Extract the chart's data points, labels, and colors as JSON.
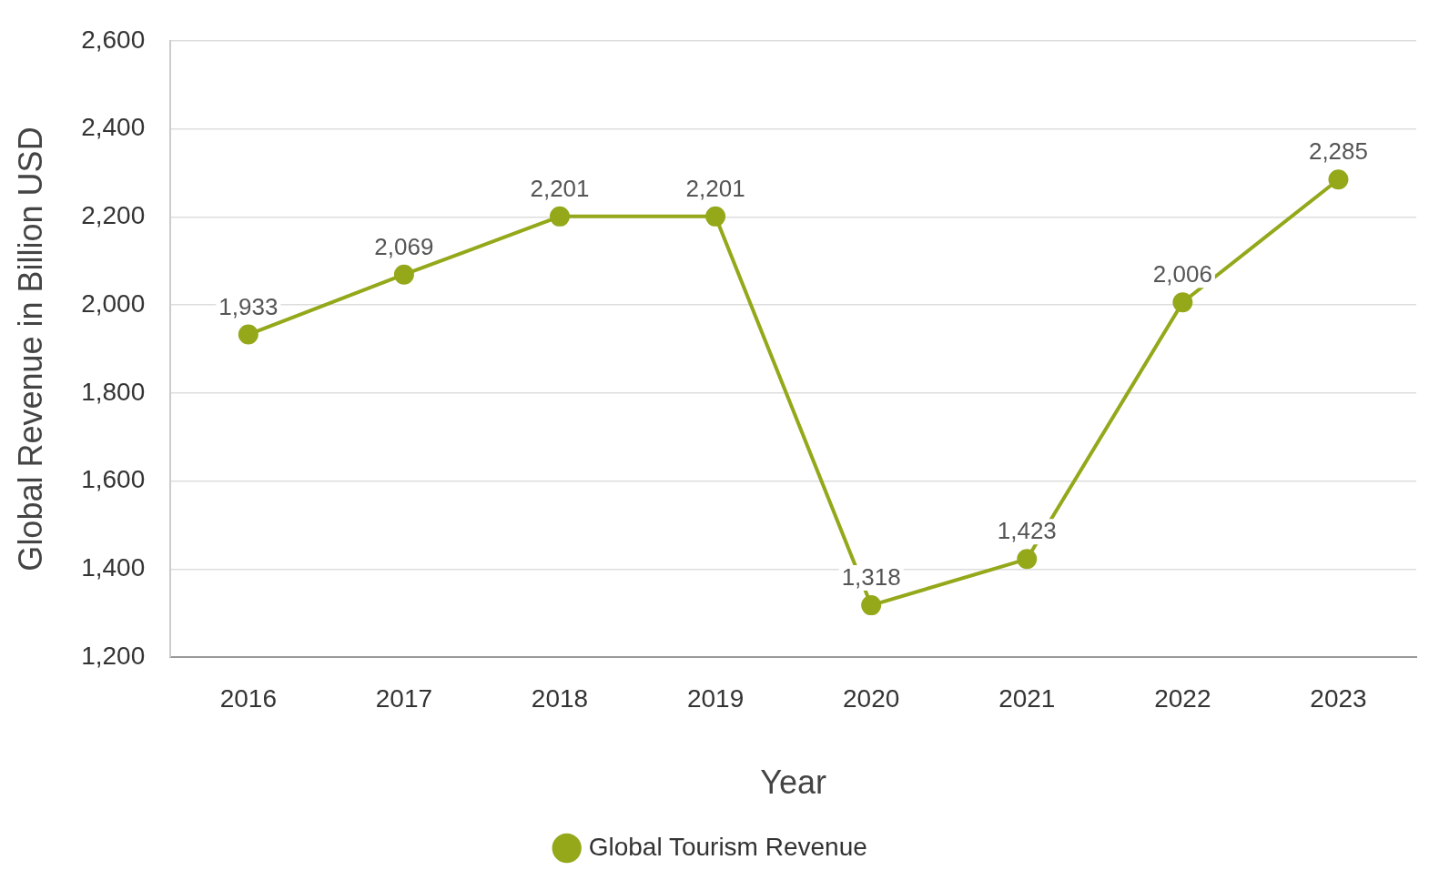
{
  "chart_data": {
    "type": "line",
    "xlabel": "Year",
    "ylabel": "Global Revenue in Billion USD",
    "categories": [
      "2016",
      "2017",
      "2018",
      "2019",
      "2020",
      "2021",
      "2022",
      "2023"
    ],
    "series": [
      {
        "name": "Global Tourism Revenue",
        "color": "#94a81a",
        "values": [
          1933,
          2069,
          2201,
          2201,
          1318,
          1423,
          2006,
          2285
        ],
        "value_labels": [
          "1,933",
          "2,069",
          "2,201",
          "2,201",
          "1,318",
          "1,423",
          "2,006",
          "2,285"
        ]
      }
    ],
    "ylim": [
      1200,
      2600
    ],
    "yticks": [
      {
        "value": 1200,
        "label": "1,200"
      },
      {
        "value": 1400,
        "label": "1,400"
      },
      {
        "value": 1600,
        "label": "1,600"
      },
      {
        "value": 1800,
        "label": "1,800"
      },
      {
        "value": 2000,
        "label": "2,000"
      },
      {
        "value": 2200,
        "label": "2,200"
      },
      {
        "value": 2400,
        "label": "2,400"
      },
      {
        "value": 2600,
        "label": "2,600"
      }
    ],
    "grid": "y",
    "legend": "bottom",
    "marker": "circle",
    "line_style": "solid"
  }
}
